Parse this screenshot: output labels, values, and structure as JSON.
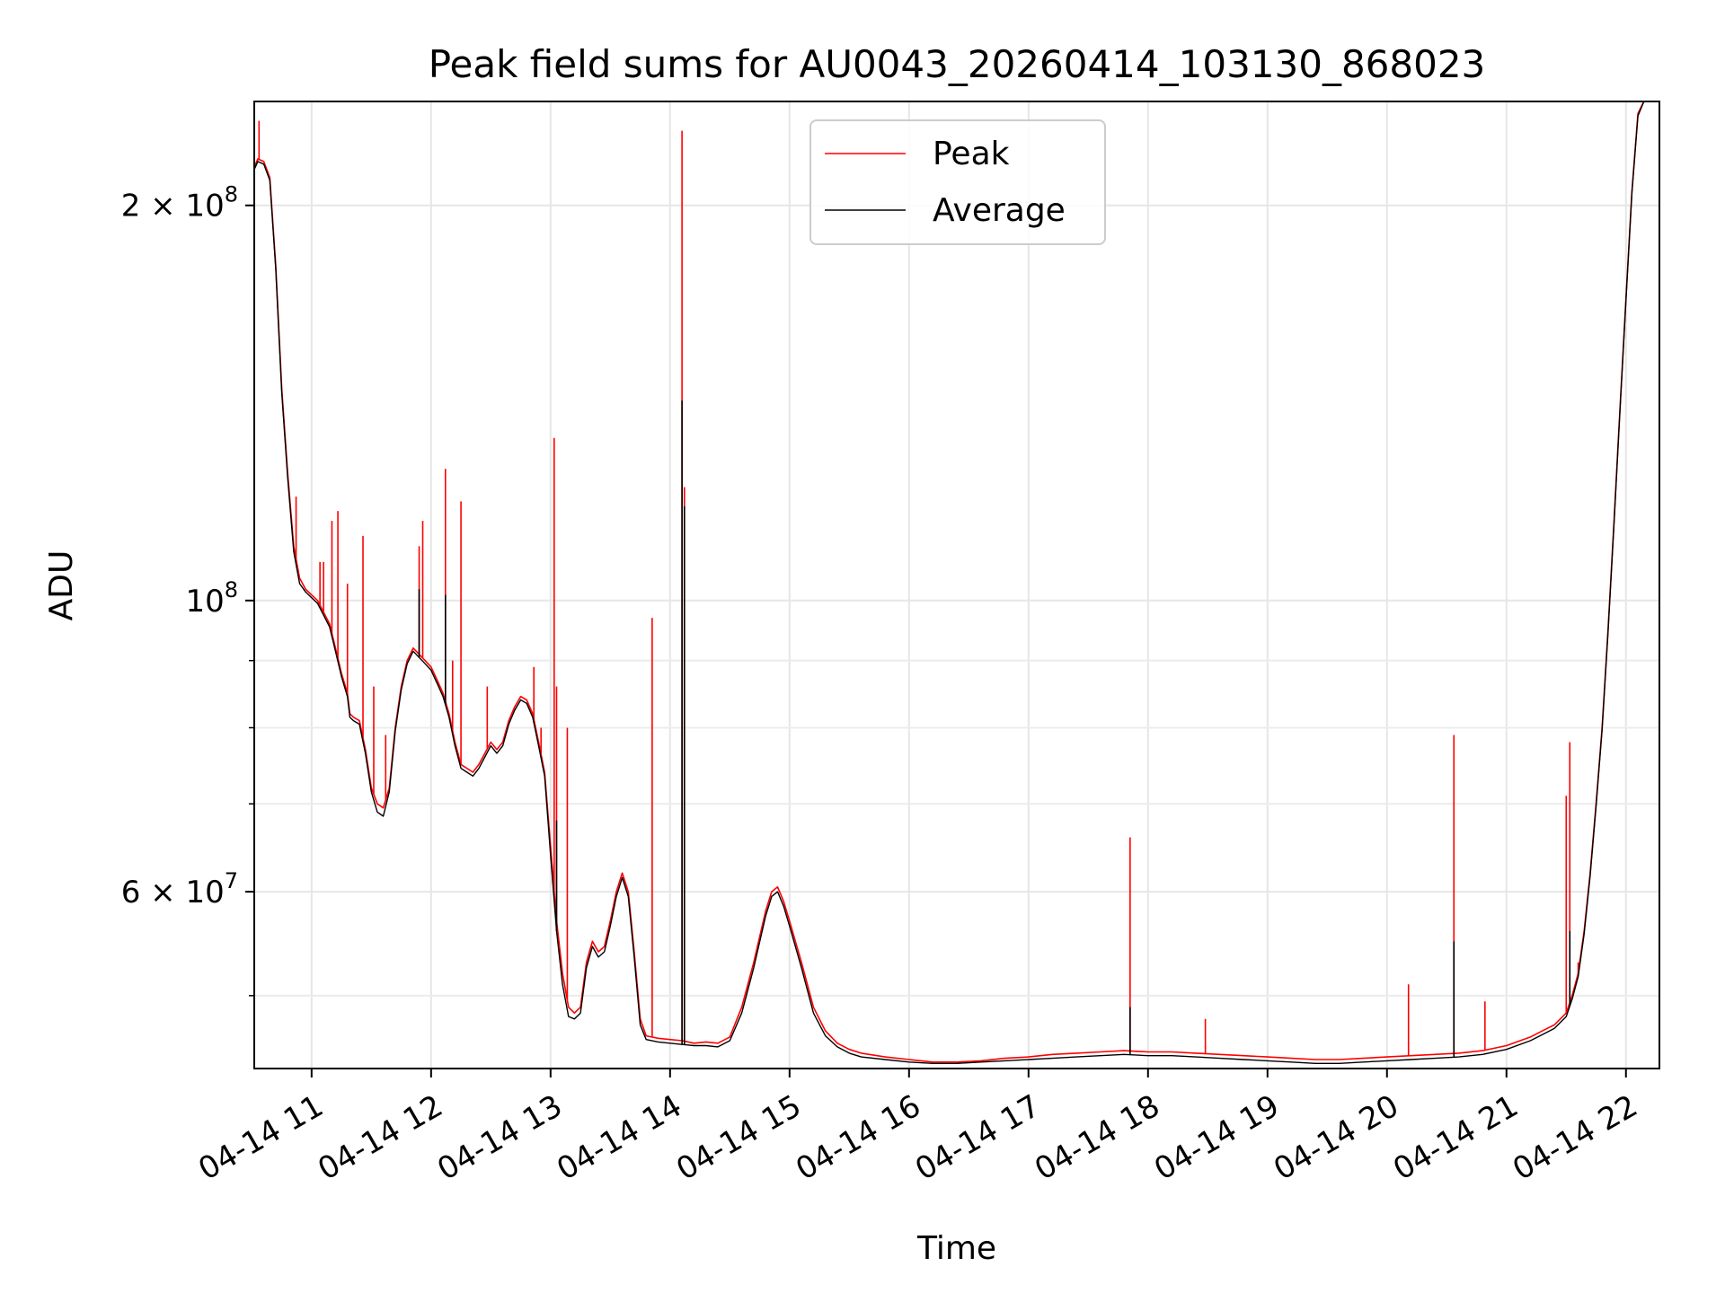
{
  "chart_data": {
    "type": "line",
    "title": "Peak field sums for AU0043_20260414_103130_868023",
    "xlabel": "Time",
    "ylabel": "ADU",
    "yscale": "log",
    "xlim": [
      10.52,
      22.28
    ],
    "ylim": [
      44000000,
      240000000
    ],
    "grid": true,
    "legend_position": "upper-center",
    "x_ticks": [
      {
        "value": 11,
        "label": "04-14 11"
      },
      {
        "value": 12,
        "label": "04-14 12"
      },
      {
        "value": 13,
        "label": "04-14 13"
      },
      {
        "value": 14,
        "label": "04-14 14"
      },
      {
        "value": 15,
        "label": "04-14 15"
      },
      {
        "value": 16,
        "label": "04-14 16"
      },
      {
        "value": 17,
        "label": "04-14 17"
      },
      {
        "value": 18,
        "label": "04-14 18"
      },
      {
        "value": 19,
        "label": "04-14 19"
      },
      {
        "value": 20,
        "label": "04-14 20"
      },
      {
        "value": 21,
        "label": "04-14 21"
      },
      {
        "value": 22,
        "label": "04-14 22"
      }
    ],
    "y_ticks": [
      {
        "value": 200000000,
        "base": "2 × 10",
        "exp": "8"
      },
      {
        "value": 100000000,
        "base": "10",
        "exp": "8"
      },
      {
        "value": 60000000,
        "base": "6 × 10",
        "exp": "7"
      }
    ],
    "y_minor_ticks": [
      50000000,
      70000000,
      80000000,
      90000000
    ],
    "series": [
      {
        "name": "Peak",
        "color": "#ff0000",
        "x": [
          10.52,
          10.55,
          10.6,
          10.65,
          10.7,
          10.75,
          10.8,
          10.85,
          10.9,
          10.95,
          11.0,
          11.05,
          11.1,
          11.15,
          11.2,
          11.25,
          11.3,
          11.32,
          11.35,
          11.4,
          11.45,
          11.5,
          11.55,
          11.6,
          11.65,
          11.7,
          11.75,
          11.8,
          11.85,
          11.9,
          11.95,
          12.0,
          12.05,
          12.1,
          12.15,
          12.2,
          12.25,
          12.3,
          12.35,
          12.4,
          12.45,
          12.5,
          12.55,
          12.6,
          12.65,
          12.7,
          12.75,
          12.8,
          12.85,
          12.9,
          12.95,
          13.0,
          13.05,
          13.1,
          13.15,
          13.2,
          13.25,
          13.3,
          13.35,
          13.4,
          13.45,
          13.5,
          13.55,
          13.6,
          13.65,
          13.7,
          13.75,
          13.8,
          13.9,
          14.0,
          14.1,
          14.2,
          14.3,
          14.4,
          14.5,
          14.6,
          14.7,
          14.8,
          14.85,
          14.9,
          14.95,
          15.0,
          15.1,
          15.2,
          15.3,
          15.4,
          15.5,
          15.6,
          15.8,
          16.0,
          16.2,
          16.4,
          16.6,
          16.8,
          17.0,
          17.2,
          17.4,
          17.6,
          17.8,
          18.0,
          18.2,
          18.4,
          18.6,
          18.8,
          19.0,
          19.2,
          19.4,
          19.6,
          19.8,
          20.0,
          20.2,
          20.4,
          20.6,
          20.8,
          21.0,
          21.2,
          21.3,
          21.4,
          21.5,
          21.55,
          21.6,
          21.65,
          21.7,
          21.75,
          21.8,
          21.85,
          21.9,
          21.95,
          22.0,
          22.05,
          22.1,
          22.15,
          22.2,
          22.28
        ],
        "y": [
          214000000,
          217000000,
          216000000,
          210000000,
          180000000,
          145000000,
          125000000,
          110000000,
          104000000,
          102000000,
          101000000,
          100000000,
          98000000,
          96000000,
          92000000,
          88000000,
          85000000,
          82000000,
          81500000,
          81000000,
          77000000,
          72000000,
          70000000,
          69500000,
          72000000,
          80000000,
          86000000,
          90000000,
          92000000,
          91000000,
          90000000,
          89000000,
          87000000,
          85000000,
          82000000,
          78000000,
          75000000,
          74500000,
          74000000,
          75000000,
          76500000,
          78000000,
          77000000,
          78000000,
          81000000,
          83000000,
          84500000,
          84000000,
          82000000,
          78000000,
          74000000,
          65000000,
          57000000,
          52000000,
          49000000,
          48500000,
          49000000,
          53000000,
          55000000,
          54000000,
          54500000,
          57000000,
          60000000,
          62000000,
          60000000,
          54000000,
          48000000,
          46600000,
          46400000,
          46300000,
          46200000,
          46000000,
          46100000,
          46000000,
          46500000,
          49000000,
          53000000,
          58000000,
          60000000,
          60500000,
          59000000,
          57000000,
          53000000,
          49000000,
          47000000,
          46000000,
          45500000,
          45200000,
          44900000,
          44700000,
          44500000,
          44500000,
          44600000,
          44800000,
          44900000,
          45100000,
          45200000,
          45300000,
          45400000,
          45300000,
          45300000,
          45200000,
          45100000,
          45000000,
          44900000,
          44800000,
          44700000,
          44700000,
          44800000,
          44900000,
          45000000,
          45100000,
          45200000,
          45400000,
          45800000,
          46500000,
          47000000,
          47500000,
          48500000,
          50000000,
          52000000,
          56000000,
          62000000,
          70000000,
          80000000,
          95000000,
          115000000,
          140000000,
          170000000,
          205000000,
          235000000,
          240000000,
          240000000,
          240000000
        ],
        "spikes": [
          {
            "x": 10.56,
            "y": 232000000
          },
          {
            "x": 10.87,
            "y": 120000000
          },
          {
            "x": 11.07,
            "y": 107000000
          },
          {
            "x": 11.1,
            "y": 107000000
          },
          {
            "x": 11.17,
            "y": 115000000
          },
          {
            "x": 11.22,
            "y": 117000000
          },
          {
            "x": 11.3,
            "y": 103000000
          },
          {
            "x": 11.43,
            "y": 112000000
          },
          {
            "x": 11.52,
            "y": 86000000
          },
          {
            "x": 11.62,
            "y": 79000000
          },
          {
            "x": 11.68,
            "y": 77000000
          },
          {
            "x": 11.9,
            "y": 110000000
          },
          {
            "x": 11.93,
            "y": 115000000
          },
          {
            "x": 12.12,
            "y": 126000000
          },
          {
            "x": 12.18,
            "y": 90000000
          },
          {
            "x": 12.25,
            "y": 119000000
          },
          {
            "x": 12.47,
            "y": 86000000
          },
          {
            "x": 12.86,
            "y": 89000000
          },
          {
            "x": 12.92,
            "y": 80000000
          },
          {
            "x": 13.03,
            "y": 133000000
          },
          {
            "x": 13.05,
            "y": 86000000
          },
          {
            "x": 13.14,
            "y": 80000000
          },
          {
            "x": 13.85,
            "y": 97000000
          },
          {
            "x": 14.1,
            "y": 228000000
          },
          {
            "x": 14.12,
            "y": 122000000
          },
          {
            "x": 17.85,
            "y": 66000000
          },
          {
            "x": 18.48,
            "y": 48000000
          },
          {
            "x": 20.18,
            "y": 51000000
          },
          {
            "x": 20.56,
            "y": 79000000
          },
          {
            "x": 20.82,
            "y": 49500000
          },
          {
            "x": 21.5,
            "y": 71000000
          },
          {
            "x": 21.53,
            "y": 78000000
          },
          {
            "x": 21.6,
            "y": 53000000
          }
        ]
      },
      {
        "name": "Average",
        "color": "#000000",
        "x": [
          10.52,
          10.55,
          10.6,
          10.65,
          10.7,
          10.75,
          10.8,
          10.85,
          10.9,
          10.95,
          11.0,
          11.05,
          11.1,
          11.15,
          11.2,
          11.25,
          11.3,
          11.32,
          11.35,
          11.4,
          11.45,
          11.5,
          11.55,
          11.6,
          11.65,
          11.7,
          11.75,
          11.8,
          11.85,
          11.9,
          11.95,
          12.0,
          12.05,
          12.1,
          12.15,
          12.2,
          12.25,
          12.3,
          12.35,
          12.4,
          12.45,
          12.5,
          12.55,
          12.6,
          12.65,
          12.7,
          12.75,
          12.8,
          12.85,
          12.9,
          12.95,
          13.0,
          13.05,
          13.1,
          13.15,
          13.2,
          13.25,
          13.3,
          13.35,
          13.4,
          13.45,
          13.5,
          13.55,
          13.6,
          13.65,
          13.7,
          13.75,
          13.8,
          13.9,
          14.0,
          14.1,
          14.2,
          14.3,
          14.4,
          14.5,
          14.6,
          14.7,
          14.8,
          14.85,
          14.9,
          14.95,
          15.0,
          15.1,
          15.2,
          15.3,
          15.4,
          15.5,
          15.6,
          15.8,
          16.0,
          16.2,
          16.4,
          16.6,
          16.8,
          17.0,
          17.2,
          17.4,
          17.6,
          17.8,
          18.0,
          18.2,
          18.4,
          18.6,
          18.8,
          19.0,
          19.2,
          19.4,
          19.6,
          19.8,
          20.0,
          20.2,
          20.4,
          20.6,
          20.8,
          21.0,
          21.2,
          21.3,
          21.4,
          21.5,
          21.55,
          21.6,
          21.65,
          21.7,
          21.75,
          21.8,
          21.85,
          21.9,
          21.95,
          22.0,
          22.05,
          22.1,
          22.15,
          22.2,
          22.28
        ],
        "y": [
          213000000,
          216000000,
          215000000,
          209000000,
          179000000,
          144000000,
          124000000,
          109000000,
          103000000,
          101500000,
          100500000,
          99500000,
          97500000,
          95500000,
          91500000,
          87500000,
          84500000,
          81500000,
          81000000,
          80500000,
          76500000,
          71500000,
          69000000,
          68500000,
          71500000,
          79500000,
          85500000,
          89500000,
          91500000,
          90500000,
          89500000,
          88500000,
          86500000,
          84500000,
          81500000,
          77500000,
          74500000,
          74000000,
          73500000,
          74500000,
          76000000,
          77500000,
          76500000,
          77500000,
          80500000,
          82500000,
          84000000,
          83500000,
          81500000,
          77500000,
          73500000,
          64000000,
          56000000,
          51000000,
          48200000,
          48000000,
          48500000,
          52500000,
          54500000,
          53500000,
          54000000,
          56500000,
          59500000,
          61500000,
          59500000,
          53500000,
          47500000,
          46300000,
          46100000,
          46000000,
          45900000,
          45800000,
          45800000,
          45700000,
          46200000,
          48500000,
          52500000,
          57500000,
          59500000,
          60000000,
          58500000,
          56500000,
          52500000,
          48500000,
          46600000,
          45700000,
          45200000,
          44900000,
          44700000,
          44500000,
          44400000,
          44400000,
          44500000,
          44600000,
          44700000,
          44800000,
          44900000,
          45000000,
          45100000,
          45000000,
          45000000,
          44900000,
          44800000,
          44700000,
          44600000,
          44500000,
          44400000,
          44400000,
          44500000,
          44600000,
          44700000,
          44800000,
          44900000,
          45100000,
          45500000,
          46200000,
          46700000,
          47200000,
          48200000,
          49700000,
          51700000,
          55700000,
          61700000,
          69700000,
          79700000,
          94500000,
          114500000,
          139500000,
          169500000,
          204500000,
          234000000,
          240000000,
          240000000,
          240000000
        ],
        "spikes": [
          {
            "x": 11.9,
            "y": 102000000
          },
          {
            "x": 12.12,
            "y": 101000000
          },
          {
            "x": 13.05,
            "y": 68000000
          },
          {
            "x": 14.1,
            "y": 142000000
          },
          {
            "x": 14.12,
            "y": 118000000
          },
          {
            "x": 17.85,
            "y": 49000000
          },
          {
            "x": 20.56,
            "y": 55000000
          },
          {
            "x": 21.53,
            "y": 56000000
          }
        ]
      }
    ]
  }
}
